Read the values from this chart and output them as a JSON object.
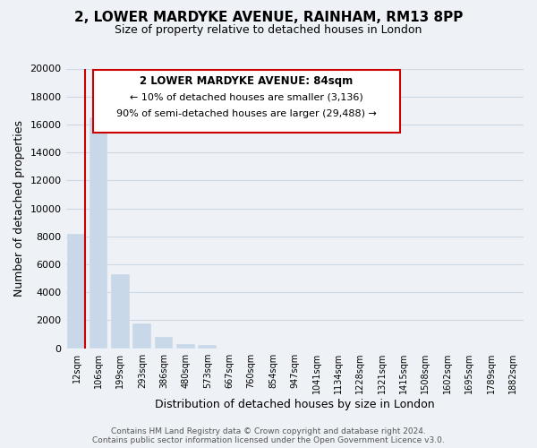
{
  "title": "2, LOWER MARDYKE AVENUE, RAINHAM, RM13 8PP",
  "subtitle": "Size of property relative to detached houses in London",
  "xlabel": "Distribution of detached houses by size in London",
  "ylabel": "Number of detached properties",
  "bar_labels": [
    "12sqm",
    "106sqm",
    "199sqm",
    "293sqm",
    "386sqm",
    "480sqm",
    "573sqm",
    "667sqm",
    "760sqm",
    "854sqm",
    "947sqm",
    "1041sqm",
    "1134sqm",
    "1228sqm",
    "1321sqm",
    "1415sqm",
    "1508sqm",
    "1602sqm",
    "1695sqm",
    "1789sqm",
    "1882sqm"
  ],
  "bar_heights": [
    8200,
    16500,
    5300,
    1750,
    800,
    280,
    250,
    0,
    0,
    0,
    0,
    0,
    0,
    0,
    0,
    0,
    0,
    0,
    0,
    0,
    0
  ],
  "bar_color": "#c8d8e8",
  "ylim": [
    0,
    20000
  ],
  "yticks": [
    0,
    2000,
    4000,
    6000,
    8000,
    10000,
    12000,
    14000,
    16000,
    18000,
    20000
  ],
  "annotation_title": "2 LOWER MARDYKE AVENUE: 84sqm",
  "annotation_line1": "← 10% of detached houses are smaller (3,136)",
  "annotation_line2": "90% of semi-detached houses are larger (29,488) →",
  "annotation_box_facecolor": "#ffffff",
  "annotation_border_color": "#cc0000",
  "footer_line1": "Contains HM Land Registry data © Crown copyright and database right 2024.",
  "footer_line2": "Contains public sector information licensed under the Open Government Licence v3.0.",
  "red_line_color": "#cc0000",
  "grid_color": "#ccd8e4",
  "background_color": "#eef2f6"
}
